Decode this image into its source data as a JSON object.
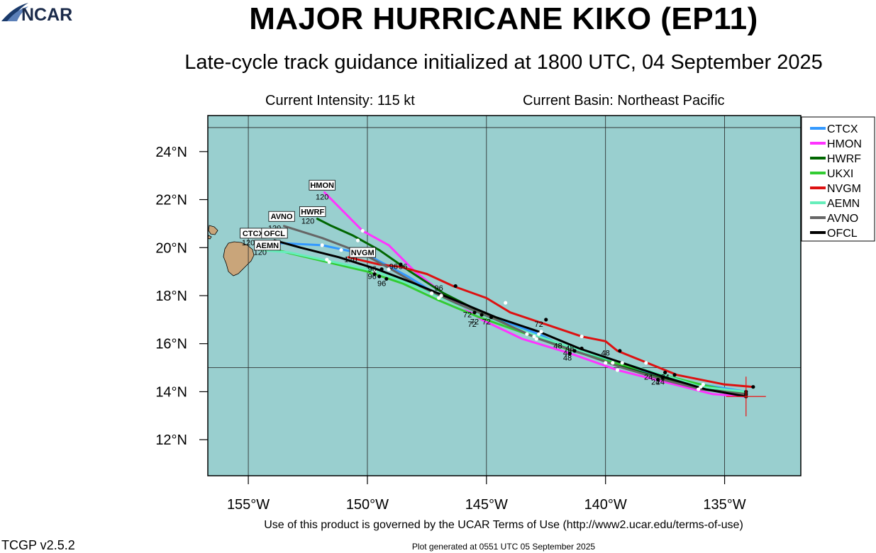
{
  "header": {
    "title": "MAJOR HURRICANE KIKO (EP11)",
    "subtitle": "Late-cycle track guidance initialized at 1800 UTC, 04 September 2025",
    "intensity": "Current Intensity: 115 kt",
    "basin": "Current Basin: Northeast Pacific"
  },
  "footer": {
    "terms": "Use of this product is governed by the UCAR Terms of Use (http://www2.ucar.edu/terms-of-use)",
    "generated": "Plot generated at 0551 UTC   05 September 2025",
    "version": "TCGP v2.5.2",
    "logo_text": "NCAR"
  },
  "map": {
    "ocean_color": "#99cfcf",
    "land_color": "#c9a57a",
    "lon_range": [
      -156.7,
      -131.8
    ],
    "lat_range": [
      10.5,
      25.5
    ],
    "grid_lons": [
      -155,
      -150,
      -145,
      -140,
      -135
    ],
    "grid_lats": [
      15,
      25
    ],
    "lon_ticks": [
      {
        "value": -155,
        "label": "155°W"
      },
      {
        "value": -150,
        "label": "150°W"
      },
      {
        "value": -145,
        "label": "145°W"
      },
      {
        "value": -140,
        "label": "140°W"
      },
      {
        "value": -135,
        "label": "135°W"
      }
    ],
    "lat_ticks": [
      {
        "value": 12,
        "label": "12°N"
      },
      {
        "value": 14,
        "label": "14°N"
      },
      {
        "value": 16,
        "label": "16°N"
      },
      {
        "value": 18,
        "label": "18°N"
      },
      {
        "value": 20,
        "label": "20°N"
      },
      {
        "value": 22,
        "label": "22°N"
      },
      {
        "value": 24,
        "label": "24°N"
      }
    ],
    "current_position": {
      "lon": -134.1,
      "lat": 13.8
    }
  },
  "tracks": [
    {
      "name": "CTCX",
      "color": "#3399ff",
      "end_label": "CTCX",
      "points": [
        {
          "lon": -134.1,
          "lat": 14.0
        },
        {
          "lon": -136.0,
          "lat": 14.3
        },
        {
          "lon": -137.8,
          "lat": 14.7
        },
        {
          "lon": -139.5,
          "lat": 15.2
        },
        {
          "lon": -141.4,
          "lat": 15.7
        },
        {
          "lon": -142.8,
          "lat": 16.4
        },
        {
          "lon": -144.2,
          "lat": 16.9
        },
        {
          "lon": -145.0,
          "lat": 17.2
        },
        {
          "lon": -145.8,
          "lat": 17.4
        },
        {
          "lon": -146.3,
          "lat": 17.8
        },
        {
          "lon": -147.0,
          "lat": 18.0
        },
        {
          "lon": -148.3,
          "lat": 18.8
        },
        {
          "lon": -150.0,
          "lat": 19.7
        },
        {
          "lon": -151.9,
          "lat": 20.1
        },
        {
          "lon": -153.9,
          "lat": 20.2
        },
        {
          "lon": -154.2,
          "lat": 20.2
        }
      ]
    },
    {
      "name": "HMON",
      "color": "#ff33ff",
      "end_label": "HMON",
      "points": [
        {
          "lon": -134.1,
          "lat": 13.8
        },
        {
          "lon": -135.5,
          "lat": 13.9
        },
        {
          "lon": -137.5,
          "lat": 14.4
        },
        {
          "lon": -139.5,
          "lat": 14.9
        },
        {
          "lon": -141.5,
          "lat": 15.6
        },
        {
          "lon": -143.5,
          "lat": 16.2
        },
        {
          "lon": -145.2,
          "lat": 17.0
        },
        {
          "lon": -146.7,
          "lat": 18.0
        },
        {
          "lon": -148.0,
          "lat": 19.0
        },
        {
          "lon": -149.1,
          "lat": 20.1
        },
        {
          "lon": -150.2,
          "lat": 20.7
        },
        {
          "lon": -151.8,
          "lat": 22.3
        }
      ]
    },
    {
      "name": "HWRF",
      "color": "#006600",
      "end_label": "HWRF",
      "points": [
        {
          "lon": -134.1,
          "lat": 13.9
        },
        {
          "lon": -136.0,
          "lat": 14.2
        },
        {
          "lon": -137.8,
          "lat": 14.6
        },
        {
          "lon": -139.8,
          "lat": 15.2
        },
        {
          "lon": -141.6,
          "lat": 15.8
        },
        {
          "lon": -143.5,
          "lat": 16.5
        },
        {
          "lon": -145.2,
          "lat": 17.3
        },
        {
          "lon": -146.8,
          "lat": 18.1
        },
        {
          "lon": -148.2,
          "lat": 19.0
        },
        {
          "lon": -149.5,
          "lat": 19.9
        },
        {
          "lon": -150.6,
          "lat": 20.5
        },
        {
          "lon": -151.5,
          "lat": 20.9
        },
        {
          "lon": -152.1,
          "lat": 21.2
        }
      ]
    },
    {
      "name": "UKXI",
      "color": "#33cc33",
      "end_label": "",
      "points": [
        {
          "lon": -134.1,
          "lat": 13.9
        },
        {
          "lon": -136.0,
          "lat": 14.3
        },
        {
          "lon": -138.0,
          "lat": 14.8
        },
        {
          "lon": -140.0,
          "lat": 15.3
        },
        {
          "lon": -141.7,
          "lat": 15.8
        },
        {
          "lon": -143.3,
          "lat": 16.4
        },
        {
          "lon": -145.3,
          "lat": 17.1
        },
        {
          "lon": -147.0,
          "lat": 17.8
        },
        {
          "lon": -148.5,
          "lat": 18.5
        },
        {
          "lon": -150.0,
          "lat": 19.0
        },
        {
          "lon": -151.7,
          "lat": 19.4
        },
        {
          "lon": -153.4,
          "lat": 19.8
        },
        {
          "lon": -154.2,
          "lat": 20.0
        }
      ]
    },
    {
      "name": "NVGM",
      "color": "#dd1111",
      "end_label": "NVGM",
      "points": [
        {
          "lon": -133.8,
          "lat": 14.2
        },
        {
          "lon": -135.0,
          "lat": 14.3
        },
        {
          "lon": -137.0,
          "lat": 14.7
        },
        {
          "lon": -138.5,
          "lat": 15.3
        },
        {
          "lon": -139.5,
          "lat": 15.7
        },
        {
          "lon": -140.0,
          "lat": 16.1
        },
        {
          "lon": -141.0,
          "lat": 16.3
        },
        {
          "lon": -142.5,
          "lat": 16.8
        },
        {
          "lon": -144.0,
          "lat": 17.3
        },
        {
          "lon": -145.0,
          "lat": 17.9
        },
        {
          "lon": -146.4,
          "lat": 18.4
        },
        {
          "lon": -147.5,
          "lat": 18.9
        },
        {
          "lon": -148.6,
          "lat": 19.2
        },
        {
          "lon": -149.5,
          "lat": 19.3
        },
        {
          "lon": -150.8,
          "lat": 19.6
        }
      ]
    },
    {
      "name": "AEMN",
      "color": "#66eebb",
      "end_label": "",
      "points": [
        {
          "lon": -134.1,
          "lat": 14.0
        },
        {
          "lon": -136.0,
          "lat": 14.2
        },
        {
          "lon": -137.6,
          "lat": 14.7
        },
        {
          "lon": -139.3,
          "lat": 15.2
        },
        {
          "lon": -141.0,
          "lat": 15.7
        },
        {
          "lon": -142.8,
          "lat": 16.3
        },
        {
          "lon": -144.7,
          "lat": 17.0
        },
        {
          "lon": -146.4,
          "lat": 17.7
        },
        {
          "lon": -148.0,
          "lat": 18.4
        },
        {
          "lon": -149.6,
          "lat": 19.0
        },
        {
          "lon": -151.4,
          "lat": 19.4
        },
        {
          "lon": -153.3,
          "lat": 19.8
        },
        {
          "lon": -154.5,
          "lat": 19.9
        }
      ]
    },
    {
      "name": "AVNO",
      "color": "#666666",
      "end_label": "AVNO",
      "points": [
        {
          "lon": -134.1,
          "lat": 13.9
        },
        {
          "lon": -136.0,
          "lat": 14.1
        },
        {
          "lon": -137.6,
          "lat": 14.5
        },
        {
          "lon": -139.3,
          "lat": 15.0
        },
        {
          "lon": -141.0,
          "lat": 15.6
        },
        {
          "lon": -142.8,
          "lat": 16.2
        },
        {
          "lon": -144.6,
          "lat": 17.0
        },
        {
          "lon": -146.3,
          "lat": 17.7
        },
        {
          "lon": -147.8,
          "lat": 18.4
        },
        {
          "lon": -149.0,
          "lat": 19.1
        },
        {
          "lon": -150.3,
          "lat": 19.8
        },
        {
          "lon": -151.9,
          "lat": 20.4
        },
        {
          "lon": -153.5,
          "lat": 20.9
        }
      ]
    },
    {
      "name": "OFCL",
      "color": "#000000",
      "end_label": "OFCL",
      "points": [
        {
          "lon": -134.1,
          "lat": 13.8
        },
        {
          "lon": -135.8,
          "lat": 14.1
        },
        {
          "lon": -137.5,
          "lat": 14.6
        },
        {
          "lon": -139.3,
          "lat": 15.2
        },
        {
          "lon": -141.1,
          "lat": 15.8
        },
        {
          "lon": -142.8,
          "lat": 16.5
        },
        {
          "lon": -144.6,
          "lat": 17.1
        },
        {
          "lon": -146.3,
          "lat": 17.8
        },
        {
          "lon": -148.0,
          "lat": 18.5
        },
        {
          "lon": -149.6,
          "lat": 19.1
        },
        {
          "lon": -151.2,
          "lat": 19.6
        },
        {
          "lon": -152.8,
          "lat": 20.0
        },
        {
          "lon": -153.9,
          "lat": 20.3
        }
      ]
    }
  ],
  "white_dots": [
    {
      "lon": -136.0,
      "lat": 14.2
    },
    {
      "lon": -135.9,
      "lat": 14.3
    },
    {
      "lon": -136.1,
      "lat": 14.1
    },
    {
      "lon": -138.3,
      "lat": 15.2
    },
    {
      "lon": -139.3,
      "lat": 15.2
    },
    {
      "lon": -139.7,
      "lat": 15.2
    },
    {
      "lon": -139.5,
      "lat": 14.9
    },
    {
      "lon": -140.0,
      "lat": 15.2
    },
    {
      "lon": -141.0,
      "lat": 16.3
    },
    {
      "lon": -142.8,
      "lat": 16.4
    },
    {
      "lon": -142.7,
      "lat": 16.5
    },
    {
      "lon": -143.0,
      "lat": 16.3
    },
    {
      "lon": -142.9,
      "lat": 16.2
    },
    {
      "lon": -144.2,
      "lat": 17.7
    },
    {
      "lon": -147.3,
      "lat": 18.1
    },
    {
      "lon": -147.0,
      "lat": 17.9
    },
    {
      "lon": -146.9,
      "lat": 18.0
    },
    {
      "lon": -149.7,
      "lat": 19.0
    },
    {
      "lon": -149.1,
      "lat": 19.1
    },
    {
      "lon": -150.4,
      "lat": 20.3
    },
    {
      "lon": -150.2,
      "lat": 20.7
    },
    {
      "lon": -151.1,
      "lat": 19.9
    },
    {
      "lon": -151.9,
      "lat": 20.1
    },
    {
      "lon": -151.7,
      "lat": 19.5
    },
    {
      "lon": -151.6,
      "lat": 19.4
    },
    {
      "lon": -143.3,
      "lat": 16.4
    }
  ],
  "black_dots": [
    {
      "lon": -133.8,
      "lat": 14.2
    },
    {
      "lon": -134.1,
      "lat": 14.0
    },
    {
      "lon": -134.1,
      "lat": 13.9
    },
    {
      "lon": -134.1,
      "lat": 13.8
    },
    {
      "lon": -137.1,
      "lat": 14.7
    },
    {
      "lon": -137.5,
      "lat": 14.8
    },
    {
      "lon": -137.6,
      "lat": 14.6
    },
    {
      "lon": -137.8,
      "lat": 14.5
    },
    {
      "lon": -139.4,
      "lat": 15.7
    },
    {
      "lon": -141.0,
      "lat": 15.8
    },
    {
      "lon": -141.3,
      "lat": 15.7
    },
    {
      "lon": -141.5,
      "lat": 15.6
    },
    {
      "lon": -142.5,
      "lat": 17.0
    },
    {
      "lon": -144.8,
      "lat": 17.1
    },
    {
      "lon": -145.2,
      "lat": 17.2
    },
    {
      "lon": -145.5,
      "lat": 17.3
    },
    {
      "lon": -146.3,
      "lat": 18.4
    },
    {
      "lon": -148.6,
      "lat": 19.3
    },
    {
      "lon": -149.2,
      "lat": 18.7
    },
    {
      "lon": -149.5,
      "lat": 18.8
    },
    {
      "lon": -149.4,
      "lat": 19.1
    },
    {
      "lon": -149.7,
      "lat": 18.9
    },
    {
      "lon": -154.0,
      "lat": 20.0
    },
    {
      "lon": -153.9,
      "lat": 20.2
    }
  ],
  "hour_labels": [
    {
      "text": "24",
      "lon": -138.2,
      "lat": 14.5
    },
    {
      "text": "24",
      "lon": -137.9,
      "lat": 14.3
    },
    {
      "text": "24",
      "lon": -137.7,
      "lat": 14.3
    },
    {
      "text": "24",
      "lon": -137.5,
      "lat": 14.5
    },
    {
      "text": "48",
      "lon": -142.0,
      "lat": 15.8
    },
    {
      "text": "48",
      "lon": -141.6,
      "lat": 15.5
    },
    {
      "text": "48",
      "lon": -141.5,
      "lat": 15.7
    },
    {
      "text": "48",
      "lon": -141.6,
      "lat": 15.3
    },
    {
      "text": "48",
      "lon": -140.0,
      "lat": 15.5
    },
    {
      "text": "72",
      "lon": -145.8,
      "lat": 17.1
    },
    {
      "text": "72",
      "lon": -145.5,
      "lat": 16.8
    },
    {
      "text": "72",
      "lon": -145.6,
      "lat": 16.7
    },
    {
      "text": "72",
      "lon": -145.0,
      "lat": 16.8
    },
    {
      "text": "72",
      "lon": -142.8,
      "lat": 16.7
    },
    {
      "text": "96",
      "lon": -147.0,
      "lat": 18.2
    },
    {
      "text": "96",
      "lon": -149.8,
      "lat": 19.0
    },
    {
      "text": "96",
      "lon": -149.8,
      "lat": 18.7
    },
    {
      "text": "96",
      "lon": -149.4,
      "lat": 18.4
    },
    {
      "text": "96",
      "lon": -148.9,
      "lat": 19.1
    },
    {
      "text": "96",
      "lon": -148.5,
      "lat": 19.1
    },
    {
      "text": "120",
      "lon": -151.9,
      "lat": 22.0
    },
    {
      "text": "120",
      "lon": -152.5,
      "lat": 21.0
    },
    {
      "text": "120",
      "lon": -153.9,
      "lat": 20.7
    },
    {
      "text": "120",
      "lon": -155.0,
      "lat": 20.1
    },
    {
      "text": "120",
      "lon": -154.5,
      "lat": 19.7
    },
    {
      "text": "120",
      "lon": -150.7,
      "lat": 19.4
    }
  ],
  "model_boxes": [
    {
      "text": "HMON",
      "lon": -151.9,
      "lat": 22.6
    },
    {
      "text": "HWRF",
      "lon": -152.3,
      "lat": 21.5
    },
    {
      "text": "AVNO",
      "lon": -153.6,
      "lat": 21.3
    },
    {
      "text": "CTCX",
      "lon": -154.8,
      "lat": 20.6
    },
    {
      "text": "OFCL",
      "lon": -153.9,
      "lat": 20.6
    },
    {
      "text": "AEMN",
      "lon": -154.2,
      "lat": 20.1
    },
    {
      "text": "NVGM",
      "lon": -150.2,
      "lat": 19.8
    }
  ],
  "legend": [
    {
      "label": "CTCX",
      "color": "#3399ff"
    },
    {
      "label": "HMON",
      "color": "#ff33ff"
    },
    {
      "label": "HWRF",
      "color": "#006600"
    },
    {
      "label": "UKXI",
      "color": "#33cc33"
    },
    {
      "label": "NVGM",
      "color": "#dd1111"
    },
    {
      "label": "AEMN",
      "color": "#66eebb"
    },
    {
      "label": "AVNO",
      "color": "#666666"
    },
    {
      "label": "OFCL",
      "color": "#000000"
    }
  ]
}
